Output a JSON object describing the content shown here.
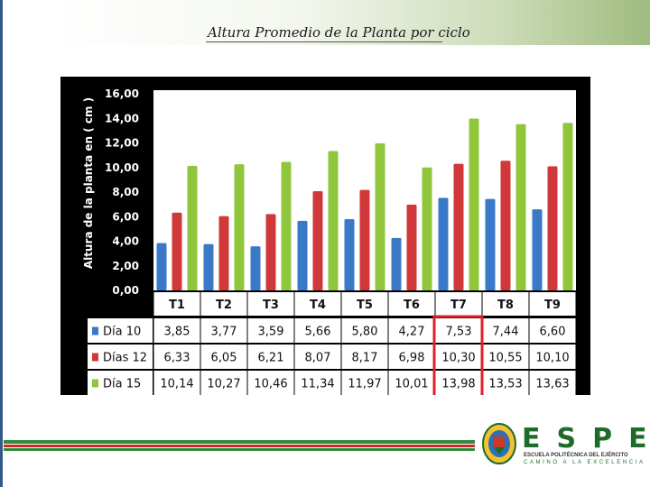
{
  "slide": {
    "title": "Altura Promedio de la Planta por ciclo"
  },
  "chart_data": {
    "type": "bar",
    "title": "",
    "xlabel": "",
    "ylabel": "Altura de la planta en ( cm )",
    "ylim": [
      0,
      16
    ],
    "y_ticks": [
      "0,00",
      "2,00",
      "4,00",
      "6,00",
      "8,00",
      "10,00",
      "12,00",
      "14,00",
      "16,00"
    ],
    "categories": [
      "T1",
      "T2",
      "T3",
      "T4",
      "T5",
      "T6",
      "T7",
      "T8",
      "T9"
    ],
    "legend": "data-table-below",
    "series": [
      {
        "name": "Día 10",
        "color": "#3a78c8",
        "values": [
          3.85,
          3.77,
          3.59,
          5.66,
          5.8,
          4.27,
          7.53,
          7.44,
          6.6
        ],
        "labels": [
          "3,85",
          "3,77",
          "3,59",
          "5,66",
          "5,80",
          "4,27",
          "7,53",
          "7,44",
          "6,60"
        ]
      },
      {
        "name": "Días 12",
        "color": "#d0383a",
        "values": [
          6.33,
          6.05,
          6.21,
          8.07,
          8.17,
          6.98,
          10.3,
          10.55,
          10.1
        ],
        "labels": [
          "6,33",
          "6,05",
          "6,21",
          "8,07",
          "8,17",
          "6,98",
          "10,30",
          "10,55",
          "10,10"
        ]
      },
      {
        "name": "Día 15",
        "color": "#8fc63c",
        "values": [
          10.14,
          10.27,
          10.46,
          11.34,
          11.97,
          10.01,
          13.98,
          13.53,
          13.63
        ],
        "labels": [
          "10,14",
          "10,27",
          "10,46",
          "11,34",
          "11,97",
          "10,01",
          "13,98",
          "13,53",
          "13,63"
        ]
      }
    ],
    "highlighted_category": "T7",
    "highlight_color": "#e0202a",
    "grid": false
  },
  "logo": {
    "word": "ESPE",
    "subtitle": "ESCUELA POLITÉCNICA DEL EJÉRCITO",
    "tagline": "CAMINO A LA EXCELENCIA",
    "color": "#1f6b2a"
  }
}
